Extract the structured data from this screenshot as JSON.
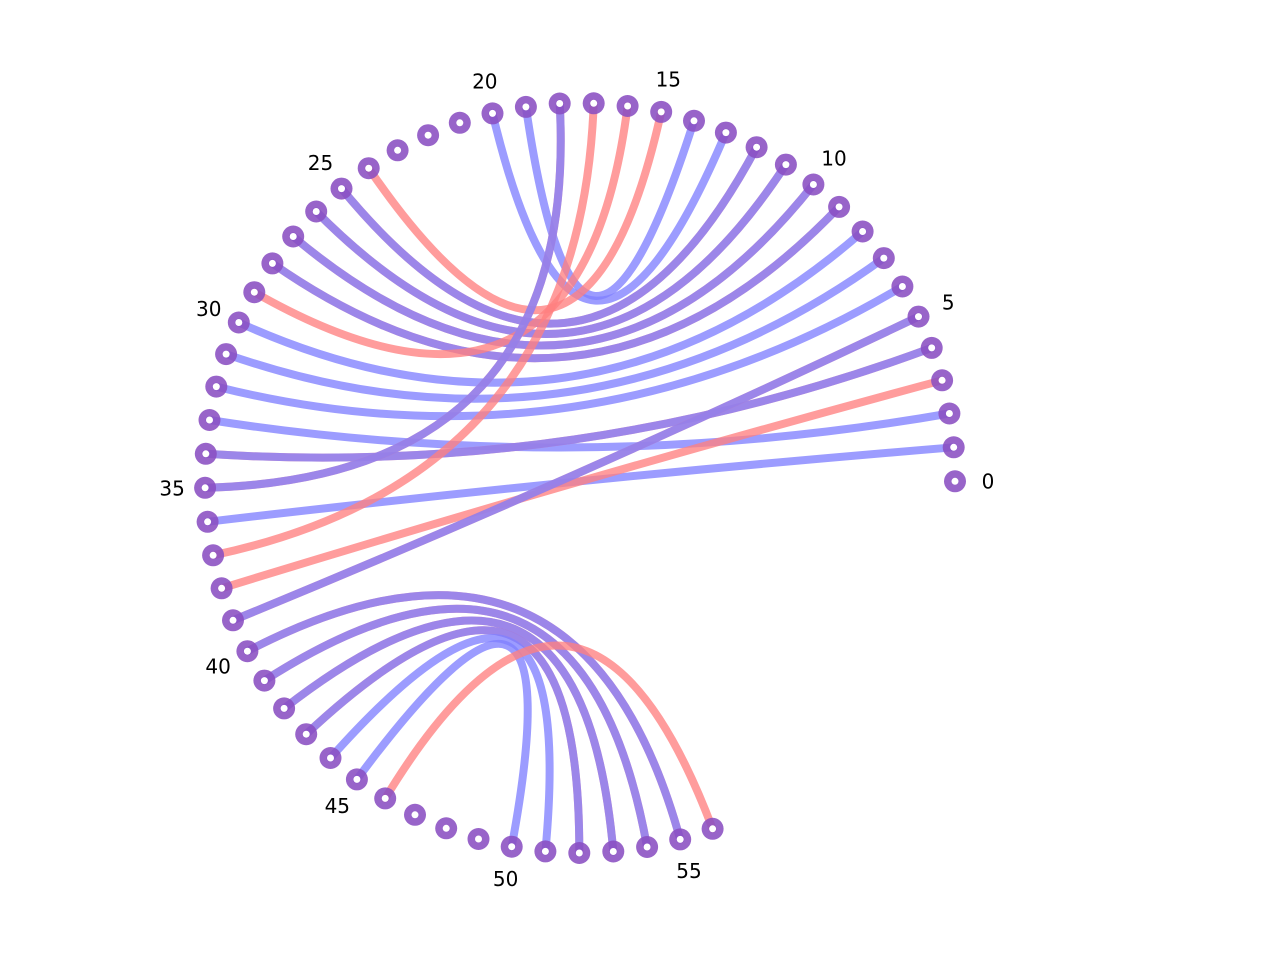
{
  "diagram": {
    "type": "arc-diagram",
    "node_count": 57,
    "labeled_nodes": [
      {
        "index": 0,
        "label": "0"
      },
      {
        "index": 5,
        "label": "5"
      },
      {
        "index": 10,
        "label": "10"
      },
      {
        "index": 15,
        "label": "15"
      },
      {
        "index": 20,
        "label": "20"
      },
      {
        "index": 25,
        "label": "25"
      },
      {
        "index": 30,
        "label": "30"
      },
      {
        "index": 35,
        "label": "35"
      },
      {
        "index": 40,
        "label": "40"
      },
      {
        "index": 45,
        "label": "45"
      },
      {
        "index": 50,
        "label": "50"
      },
      {
        "index": 55,
        "label": "55"
      }
    ],
    "colors": {
      "node_ring": "#8a4fc2",
      "node_center": "#ffffff",
      "red": "#ff8080",
      "blue": "#8080ff"
    },
    "edge_groups": [
      {
        "from": 1,
        "to": 36,
        "kind": "blue"
      },
      {
        "from": 2,
        "to": 33,
        "kind": "blue"
      },
      {
        "from": 3,
        "to": 38,
        "kind": "red"
      },
      {
        "from": 4,
        "to": 34,
        "kind": "red"
      },
      {
        "from": 4,
        "to": 34,
        "kind": "blue"
      },
      {
        "from": 5,
        "to": 39,
        "kind": "red"
      },
      {
        "from": 5,
        "to": 39,
        "kind": "blue"
      },
      {
        "from": 6,
        "to": 32,
        "kind": "blue"
      },
      {
        "from": 7,
        "to": 31,
        "kind": "blue"
      },
      {
        "from": 8,
        "to": 30,
        "kind": "blue"
      },
      {
        "from": 9,
        "to": 28,
        "kind": "red"
      },
      {
        "from": 9,
        "to": 28,
        "kind": "blue"
      },
      {
        "from": 10,
        "to": 27,
        "kind": "red"
      },
      {
        "from": 10,
        "to": 27,
        "kind": "blue"
      },
      {
        "from": 11,
        "to": 26,
        "kind": "red"
      },
      {
        "from": 11,
        "to": 26,
        "kind": "blue"
      },
      {
        "from": 12,
        "to": 25,
        "kind": "red"
      },
      {
        "from": 12,
        "to": 25,
        "kind": "blue"
      },
      {
        "from": 13,
        "to": 20,
        "kind": "blue"
      },
      {
        "from": 14,
        "to": 19,
        "kind": "blue"
      },
      {
        "from": 15,
        "to": 24,
        "kind": "red"
      },
      {
        "from": 16,
        "to": 29,
        "kind": "red"
      },
      {
        "from": 17,
        "to": 37,
        "kind": "red"
      },
      {
        "from": 18,
        "to": 35,
        "kind": "red"
      },
      {
        "from": 18,
        "to": 35,
        "kind": "blue"
      },
      {
        "from": 40,
        "to": 55,
        "kind": "red"
      },
      {
        "from": 40,
        "to": 55,
        "kind": "blue"
      },
      {
        "from": 41,
        "to": 54,
        "kind": "red"
      },
      {
        "from": 41,
        "to": 54,
        "kind": "blue"
      },
      {
        "from": 42,
        "to": 53,
        "kind": "red"
      },
      {
        "from": 42,
        "to": 53,
        "kind": "blue"
      },
      {
        "from": 43,
        "to": 52,
        "kind": "red"
      },
      {
        "from": 43,
        "to": 52,
        "kind": "blue"
      },
      {
        "from": 44,
        "to": 51,
        "kind": "blue"
      },
      {
        "from": 45,
        "to": 50,
        "kind": "blue"
      },
      {
        "from": 46,
        "to": 56,
        "kind": "red"
      }
    ]
  }
}
